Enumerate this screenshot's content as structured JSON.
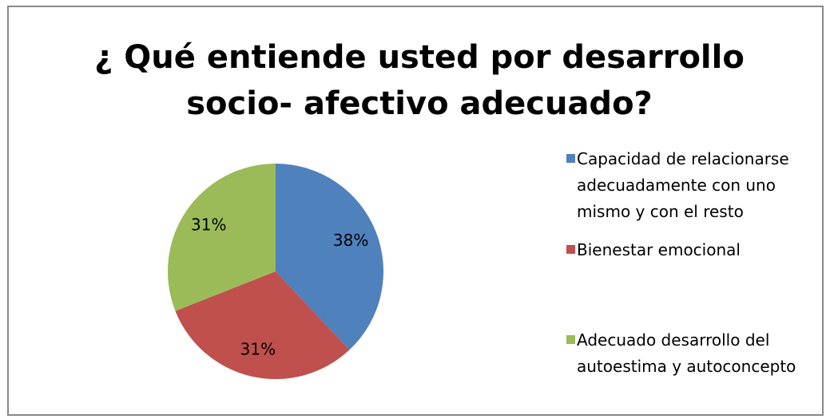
{
  "chart_data": {
    "type": "pie",
    "title": [
      "¿ Qué entiende usted por desarrollo",
      "socio- afectivo adecuado?"
    ],
    "categories": [
      "Capacidad de relacionarse adecuadamente con uno mismo y con el resto",
      "Bienestar emocional",
      "Adecuado desarrollo del autoestima y autoconcepto"
    ],
    "values": [
      38,
      31,
      31
    ],
    "value_labels": [
      "38%",
      "31%",
      "31%"
    ],
    "colors": [
      "#4f81bd",
      "#c0504d",
      "#9bbb59"
    ],
    "legend": "right"
  }
}
